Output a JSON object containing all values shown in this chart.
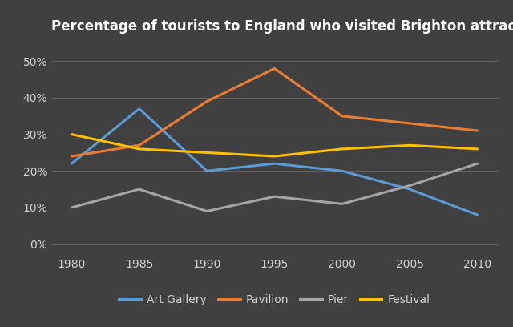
{
  "title": "Percentage of tourists to England who visited Brighton attractions",
  "years": [
    1980,
    1985,
    1990,
    1995,
    2000,
    2005,
    2010
  ],
  "series": {
    "Art Gallery": {
      "values": [
        22,
        37,
        20,
        22,
        20,
        15,
        8
      ],
      "color": "#5b9bd5"
    },
    "Pavilion": {
      "values": [
        24,
        27,
        39,
        48,
        35,
        33,
        31
      ],
      "color": "#ed7d31"
    },
    "Pier": {
      "values": [
        10,
        15,
        9,
        13,
        11,
        16,
        22
      ],
      "color": "#a5a5a5"
    },
    "Festival": {
      "values": [
        30,
        26,
        25,
        24,
        26,
        27,
        26
      ],
      "color": "#ffc000"
    }
  },
  "yticks": [
    0,
    10,
    20,
    30,
    40,
    50
  ],
  "ylim": [
    -3,
    56
  ],
  "xlim": [
    1978.5,
    2011.5
  ],
  "background_color": "#404040",
  "plot_bg_color": "#404040",
  "grid_color": "#606060",
  "text_color": "#d0d0d0",
  "title_color": "#ffffff",
  "title_fontsize": 12,
  "tick_fontsize": 10,
  "legend_fontsize": 10,
  "linewidth": 2.2
}
